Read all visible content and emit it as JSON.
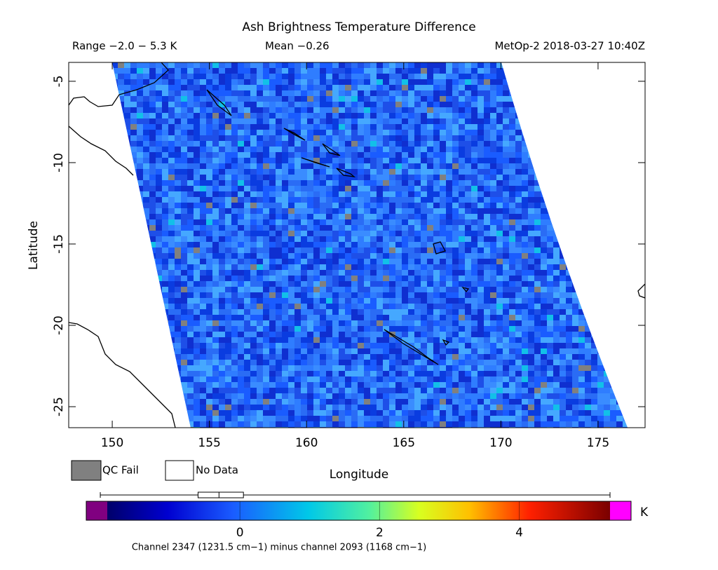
{
  "chart_data": {
    "type": "map",
    "title": "Ash Brightness Temperature Difference",
    "range_text": "Range −2.0 − 5.3 K",
    "mean_text": "Mean −0.26",
    "source_text": "MetOp-2 2018-03-27 10:40Z",
    "x_label": "Longitude",
    "y_label": "Latitude",
    "xlim": [
      147.76,
      177.42
    ],
    "ylim": [
      -26.29,
      -3.84
    ],
    "xticks": [
      150,
      155,
      160,
      165,
      170,
      175
    ],
    "yticks": [
      -5,
      -10,
      -15,
      -20,
      -25
    ],
    "legend": [
      {
        "name": "QC Fail",
        "color": "#808080"
      },
      {
        "name": "No Data",
        "color": "#ffffff"
      }
    ],
    "colorbar": {
      "clim": [
        -1.9,
        5.3
      ],
      "ticks": [
        0,
        2,
        4
      ],
      "unit": "K",
      "under_color": "#800080",
      "over_color": "#ff00ff"
    },
    "stats": {
      "min": -2.0,
      "q1": -0.6,
      "median": -0.3,
      "q3": 0.05,
      "max": 5.3
    },
    "footer": "Channel 2347 (1231.5 cm−1) minus channel 2093 (1168 cm−1)"
  }
}
